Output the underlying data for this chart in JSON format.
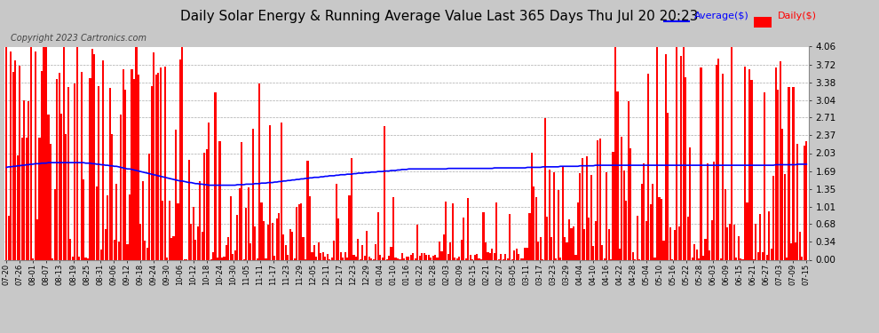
{
  "title": "Daily Solar Energy & Running Average Value Last 365 Days Thu Jul 20 20:23",
  "copyright": "Copyright 2023 Cartronics.com",
  "ylabel_right_ticks": [
    0.0,
    0.34,
    0.68,
    1.01,
    1.35,
    1.69,
    2.03,
    2.37,
    2.71,
    3.04,
    3.38,
    3.72,
    4.06
  ],
  "ymax": 4.06,
  "ymin": 0.0,
  "bar_color": "#ff0000",
  "avg_color": "#0000ff",
  "legend_avg_label": "Average($)",
  "legend_daily_label": "Daily($)",
  "title_fontsize": 11,
  "copyright_fontsize": 7,
  "background_color": "#c8c8c8",
  "plot_bg_color": "#ffffff",
  "grid_color": "#aaaaaa",
  "xtick_labels": [
    "07-20",
    "07-26",
    "08-01",
    "08-07",
    "08-13",
    "08-19",
    "08-25",
    "08-31",
    "09-06",
    "09-12",
    "09-18",
    "09-24",
    "09-30",
    "10-06",
    "10-12",
    "10-18",
    "10-24",
    "10-30",
    "11-05",
    "11-11",
    "11-17",
    "11-23",
    "11-29",
    "12-05",
    "12-11",
    "12-17",
    "12-23",
    "12-29",
    "01-04",
    "01-10",
    "01-16",
    "01-22",
    "01-28",
    "02-03",
    "02-09",
    "02-15",
    "02-21",
    "02-27",
    "03-05",
    "03-11",
    "03-17",
    "03-23",
    "03-29",
    "04-04",
    "04-10",
    "04-16",
    "04-22",
    "04-28",
    "05-04",
    "05-10",
    "05-16",
    "05-22",
    "05-28",
    "06-03",
    "06-09",
    "06-15",
    "06-21",
    "06-27",
    "07-03",
    "07-09",
    "07-15"
  ],
  "num_days": 365,
  "avg_values": [
    1.76,
    1.77,
    1.77,
    1.78,
    1.78,
    1.79,
    1.79,
    1.8,
    1.8,
    1.81,
    1.81,
    1.82,
    1.82,
    1.83,
    1.83,
    1.83,
    1.84,
    1.84,
    1.84,
    1.85,
    1.85,
    1.85,
    1.85,
    1.85,
    1.85,
    1.85,
    1.85,
    1.85,
    1.85,
    1.85,
    1.85,
    1.85,
    1.85,
    1.85,
    1.85,
    1.85,
    1.84,
    1.84,
    1.84,
    1.83,
    1.83,
    1.82,
    1.82,
    1.81,
    1.81,
    1.8,
    1.8,
    1.79,
    1.79,
    1.78,
    1.78,
    1.77,
    1.76,
    1.75,
    1.74,
    1.73,
    1.73,
    1.72,
    1.71,
    1.7,
    1.69,
    1.68,
    1.67,
    1.66,
    1.65,
    1.64,
    1.63,
    1.62,
    1.61,
    1.6,
    1.59,
    1.58,
    1.57,
    1.56,
    1.55,
    1.54,
    1.53,
    1.52,
    1.51,
    1.5,
    1.5,
    1.49,
    1.48,
    1.47,
    1.47,
    1.46,
    1.45,
    1.45,
    1.44,
    1.44,
    1.43,
    1.43,
    1.42,
    1.42,
    1.42,
    1.42,
    1.42,
    1.42,
    1.42,
    1.42,
    1.42,
    1.42,
    1.42,
    1.42,
    1.42,
    1.43,
    1.43,
    1.43,
    1.43,
    1.44,
    1.44,
    1.44,
    1.44,
    1.45,
    1.45,
    1.45,
    1.46,
    1.46,
    1.46,
    1.47,
    1.47,
    1.47,
    1.48,
    1.48,
    1.49,
    1.49,
    1.5,
    1.5,
    1.51,
    1.51,
    1.52,
    1.52,
    1.53,
    1.53,
    1.54,
    1.54,
    1.55,
    1.55,
    1.56,
    1.56,
    1.57,
    1.57,
    1.57,
    1.58,
    1.58,
    1.59,
    1.59,
    1.6,
    1.6,
    1.6,
    1.61,
    1.61,
    1.62,
    1.62,
    1.62,
    1.63,
    1.63,
    1.63,
    1.64,
    1.64,
    1.65,
    1.65,
    1.65,
    1.66,
    1.66,
    1.66,
    1.67,
    1.67,
    1.67,
    1.68,
    1.68,
    1.68,
    1.69,
    1.69,
    1.69,
    1.7,
    1.7,
    1.7,
    1.71,
    1.71,
    1.72,
    1.72,
    1.72,
    1.73,
    1.73,
    1.73,
    1.73,
    1.73,
    1.73,
    1.73,
    1.73,
    1.73,
    1.73,
    1.73,
    1.73,
    1.73,
    1.73,
    1.73,
    1.73,
    1.73,
    1.73,
    1.74,
    1.74,
    1.74,
    1.74,
    1.74,
    1.74,
    1.74,
    1.74,
    1.74,
    1.74,
    1.74,
    1.74,
    1.74,
    1.74,
    1.74,
    1.74,
    1.74,
    1.74,
    1.74,
    1.74,
    1.74,
    1.75,
    1.75,
    1.75,
    1.75,
    1.75,
    1.75,
    1.75,
    1.75,
    1.75,
    1.75,
    1.75,
    1.75,
    1.75,
    1.75,
    1.75,
    1.76,
    1.76,
    1.76,
    1.76,
    1.76,
    1.76,
    1.76,
    1.77,
    1.77,
    1.77,
    1.77,
    1.77,
    1.77,
    1.77,
    1.77,
    1.78,
    1.78,
    1.78,
    1.78,
    1.78,
    1.78,
    1.78,
    1.78,
    1.78,
    1.79,
    1.79,
    1.79,
    1.79,
    1.79,
    1.79,
    1.79,
    1.8,
    1.8,
    1.8,
    1.8,
    1.8,
    1.8,
    1.8,
    1.8,
    1.8,
    1.8,
    1.8,
    1.8,
    1.8,
    1.8,
    1.8,
    1.8,
    1.8,
    1.8,
    1.8,
    1.8,
    1.8,
    1.8,
    1.8,
    1.8,
    1.8,
    1.8,
    1.8,
    1.8,
    1.8,
    1.8,
    1.8,
    1.8,
    1.8,
    1.8,
    1.8,
    1.8,
    1.8,
    1.8,
    1.8,
    1.8,
    1.8,
    1.8,
    1.8,
    1.8,
    1.8,
    1.8,
    1.8,
    1.8,
    1.8,
    1.8,
    1.8,
    1.8,
    1.8,
    1.8,
    1.8,
    1.8,
    1.8,
    1.8,
    1.8,
    1.8,
    1.8,
    1.8,
    1.8,
    1.8,
    1.8,
    1.8,
    1.8,
    1.8,
    1.8,
    1.8,
    1.8,
    1.8,
    1.8,
    1.8,
    1.8,
    1.8,
    1.8,
    1.8,
    1.8,
    1.8,
    1.8,
    1.8,
    1.81,
    1.81,
    1.81,
    1.81,
    1.81,
    1.81,
    1.81,
    1.81,
    1.81,
    1.81,
    1.82,
    1.82,
    1.82,
    1.82,
    1.82
  ],
  "daily_seed": 12345
}
